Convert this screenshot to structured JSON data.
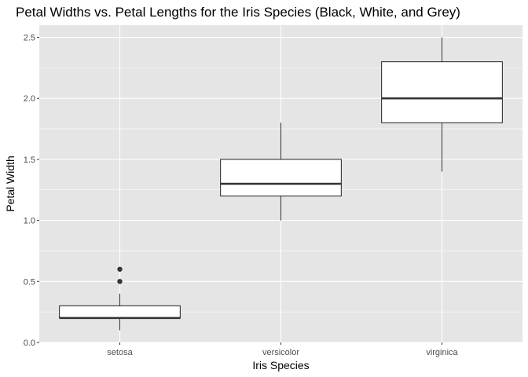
{
  "chart_data": {
    "type": "boxplot",
    "title": "Petal Widths vs. Petal Lengths for the Iris Species (Black, White, and Grey)",
    "xlabel": "Iris Species",
    "ylabel": "Petal Width",
    "categories": [
      "setosa",
      "versicolor",
      "virginica"
    ],
    "ylim": [
      0,
      2.6
    ],
    "yticks": [
      0.0,
      0.5,
      1.0,
      1.5,
      2.0,
      2.5
    ],
    "ytick_labels": [
      "0.0",
      "0.5",
      "1.0",
      "1.5",
      "2.0",
      "2.5"
    ],
    "boxes": [
      {
        "category": "setosa",
        "whisker_low": 0.1,
        "q1": 0.2,
        "median": 0.2,
        "q3": 0.3,
        "whisker_high": 0.4,
        "outliers": [
          0.5,
          0.6
        ]
      },
      {
        "category": "versicolor",
        "whisker_low": 1.0,
        "q1": 1.2,
        "median": 1.3,
        "q3": 1.5,
        "whisker_high": 1.8,
        "outliers": []
      },
      {
        "category": "virginica",
        "whisker_low": 1.4,
        "q1": 1.8,
        "median": 2.0,
        "q3": 2.3,
        "whisker_high": 2.5,
        "outliers": []
      }
    ],
    "grid": true,
    "legend": "none",
    "colors": {
      "panel": "#e5e5e5",
      "grid": "#ffffff",
      "box_fill": "#ffffff",
      "box_line": "#333333",
      "outlier": "#333333"
    }
  }
}
